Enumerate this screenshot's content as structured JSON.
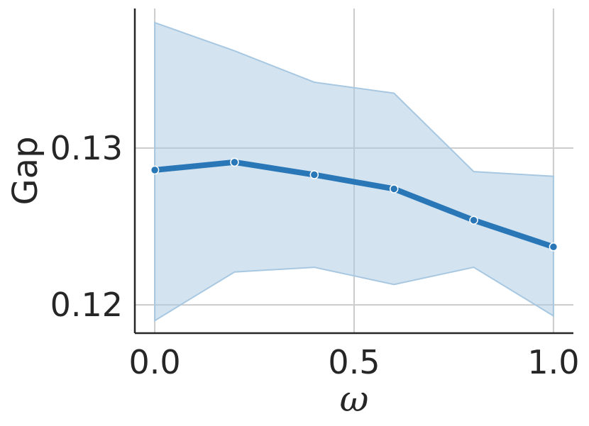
{
  "chart_data": {
    "type": "line",
    "title": "",
    "xlabel": "ω",
    "ylabel": "Gap",
    "xlim": [
      -0.05,
      1.05
    ],
    "ylim": [
      0.1182,
      0.1389
    ],
    "grid": true,
    "x": [
      0.0,
      0.2,
      0.4,
      0.6,
      0.8,
      1.0
    ],
    "series": [
      {
        "values": [
          0.1286,
          0.1291,
          0.1283,
          0.1274,
          0.1254,
          0.1237
        ],
        "ci_lower": [
          0.119,
          0.1221,
          0.1224,
          0.1213,
          0.1224,
          0.1193
        ],
        "ci_upper": [
          0.138,
          0.1362,
          0.1342,
          0.1335,
          0.1285,
          0.1282
        ],
        "color": "#2a77b8",
        "band_color": "#a8c8e1"
      }
    ],
    "xticks": [
      0.0,
      0.5,
      1.0
    ],
    "xtick_labels": [
      "0.0",
      "0.5",
      "1.0"
    ],
    "yticks": [
      0.12,
      0.13
    ],
    "ytick_labels": [
      "0.12",
      "0.13"
    ]
  }
}
